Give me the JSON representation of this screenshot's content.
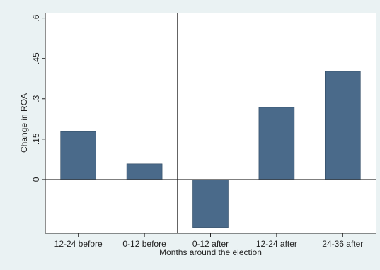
{
  "chart_data": {
    "type": "bar",
    "title": "",
    "xlabel": "Months around the election",
    "ylabel": "Change in ROA",
    "categories": [
      "12-24 before",
      "0-12 before",
      "0-12 after",
      "12-24 after",
      "24-36 after"
    ],
    "values": [
      0.178,
      0.058,
      -0.178,
      0.268,
      0.402
    ],
    "yticks": [
      0,
      0.15,
      0.3,
      0.45,
      0.6
    ],
    "ytick_labels": [
      "0",
      ".15",
      ".3",
      ".45",
      ".6"
    ],
    "ylim": [
      -0.2,
      0.62
    ],
    "grid": false,
    "reference_line_between": [
      "0-12 before",
      "0-12 after"
    ],
    "bar_color": "#4a6a8a",
    "plot_background": "#ffffff",
    "outer_background": "#eaf2f3"
  }
}
